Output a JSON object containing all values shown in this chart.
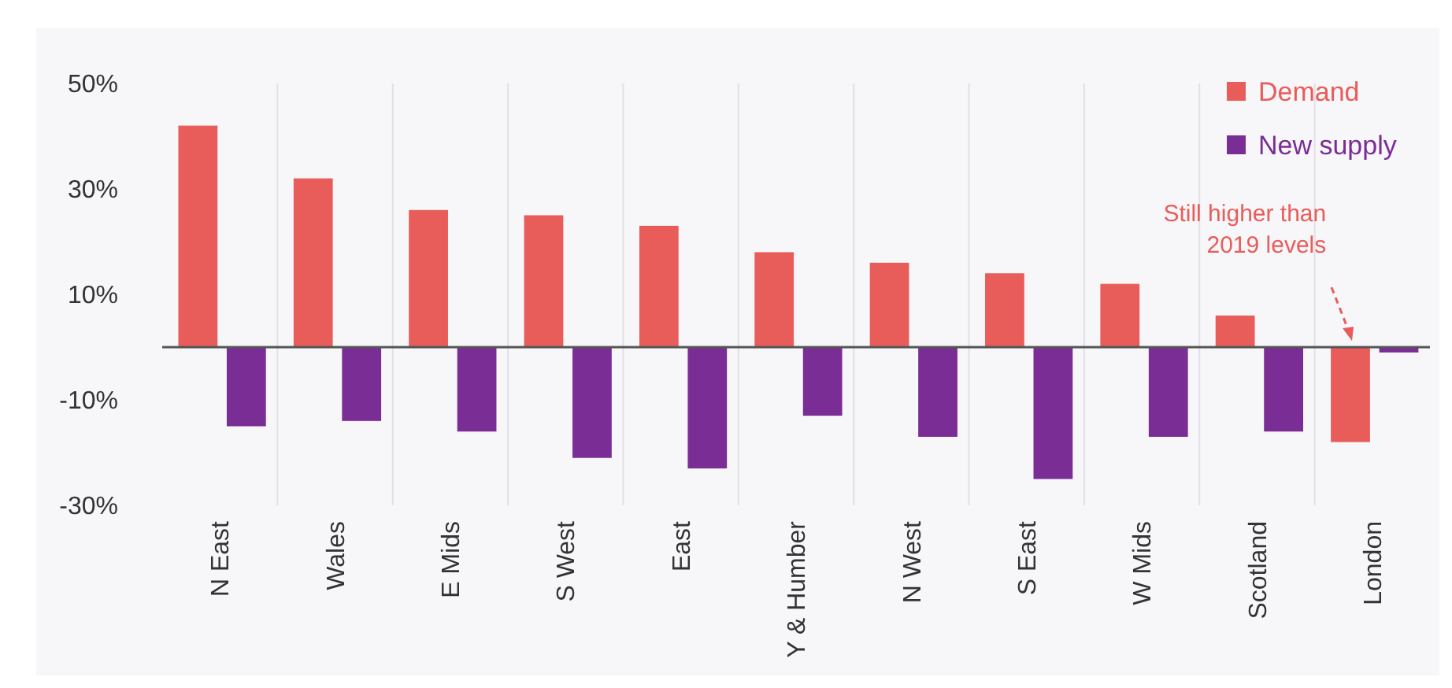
{
  "chart_data": {
    "type": "bar",
    "categories": [
      "N East",
      "Wales",
      "E Mids",
      "S West",
      "East",
      "Y & Humber",
      "N West",
      "S East",
      "W Mids",
      "Scotland",
      "London"
    ],
    "series": [
      {
        "name": "Demand",
        "color": "#e85d5a",
        "values": [
          42,
          32,
          26,
          25,
          23,
          18,
          16,
          14,
          12,
          6,
          -18
        ]
      },
      {
        "name": "New supply",
        "color": "#7b2d96",
        "values": [
          -15,
          -14,
          -16,
          -21,
          -23,
          -13,
          -17,
          -25,
          -17,
          -16,
          -1
        ]
      }
    ],
    "ylim": [
      -30,
      50
    ],
    "yticks": [
      {
        "value": 50,
        "label": "50%"
      },
      {
        "value": 30,
        "label": "30%"
      },
      {
        "value": 10,
        "label": "10%"
      },
      {
        "value": -10,
        "label": "-10%"
      },
      {
        "value": -30,
        "label": "-30%"
      }
    ],
    "grid": "x",
    "legend": "top right",
    "annotations": [
      "Still higher than\n2019 levels"
    ]
  }
}
